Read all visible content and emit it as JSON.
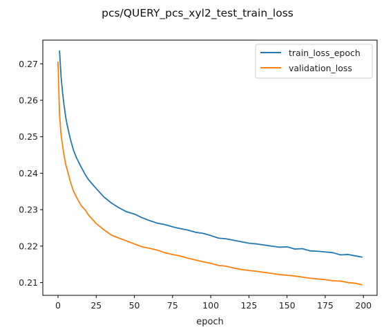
{
  "chart_data": {
    "type": "line",
    "title": "pcs/QUERY_pcs_xyl2_test_train_loss",
    "xlabel": "epoch",
    "ylabel": "",
    "xlim": [
      -9.95,
      208.95
    ],
    "ylim": [
      0.2065,
      0.2765
    ],
    "x_ticks": [
      0,
      25,
      50,
      75,
      100,
      125,
      150,
      175,
      200
    ],
    "y_ticks": [
      0.21,
      0.22,
      0.23,
      0.24,
      0.25,
      0.26,
      0.27
    ],
    "x_tick_labels": [
      "0",
      "25",
      "50",
      "75",
      "100",
      "125",
      "150",
      "175",
      "200"
    ],
    "y_tick_labels": [
      "0.21",
      "0.22",
      "0.23",
      "0.24",
      "0.25",
      "0.26",
      "0.27"
    ],
    "grid": false,
    "legend_position": "top-right",
    "series": [
      {
        "name": "train_loss_epoch",
        "color": "#1f77b4",
        "x": [
          1,
          2,
          3,
          4,
          5,
          6,
          8,
          10,
          12,
          15,
          18,
          20,
          25,
          30,
          35,
          40,
          45,
          50,
          55,
          60,
          65,
          70,
          75,
          80,
          85,
          90,
          95,
          100,
          105,
          110,
          115,
          120,
          125,
          130,
          135,
          140,
          145,
          150,
          155,
          160,
          165,
          170,
          175,
          180,
          185,
          190,
          195,
          199
        ],
        "y": [
          0.2735,
          0.2665,
          0.262,
          0.2585,
          0.2555,
          0.2532,
          0.2495,
          0.2465,
          0.2443,
          0.2418,
          0.2395,
          0.2382,
          0.2358,
          0.2335,
          0.2318,
          0.2305,
          0.2294,
          0.2288,
          0.2278,
          0.227,
          0.2263,
          0.2259,
          0.2253,
          0.2248,
          0.2244,
          0.2238,
          0.2235,
          0.2229,
          0.2222,
          0.222,
          0.2216,
          0.2212,
          0.2208,
          0.2206,
          0.2203,
          0.22,
          0.2197,
          0.2198,
          0.2192,
          0.2193,
          0.2187,
          0.2186,
          0.2184,
          0.2182,
          0.2176,
          0.2177,
          0.2173,
          0.217
        ]
      },
      {
        "name": "validation_loss",
        "color": "#ff7f0e",
        "x": [
          0,
          1,
          2,
          3,
          4,
          5,
          6,
          8,
          10,
          12,
          15,
          18,
          20,
          25,
          30,
          35,
          40,
          45,
          50,
          55,
          60,
          65,
          70,
          75,
          80,
          85,
          90,
          95,
          100,
          105,
          110,
          115,
          120,
          125,
          130,
          135,
          140,
          145,
          150,
          155,
          160,
          165,
          170,
          175,
          180,
          185,
          190,
          195,
          199
        ],
        "y": [
          0.2705,
          0.256,
          0.2505,
          0.2475,
          0.2448,
          0.2425,
          0.241,
          0.2378,
          0.2352,
          0.2335,
          0.2312,
          0.2298,
          0.2285,
          0.2262,
          0.2245,
          0.223,
          0.2222,
          0.2214,
          0.2206,
          0.2198,
          0.2194,
          0.2189,
          0.2182,
          0.2177,
          0.2173,
          0.2167,
          0.2162,
          0.2157,
          0.2153,
          0.2147,
          0.2145,
          0.214,
          0.2136,
          0.2133,
          0.2131,
          0.2128,
          0.2125,
          0.2122,
          0.212,
          0.2118,
          0.2115,
          0.2112,
          0.211,
          0.2108,
          0.2105,
          0.2104,
          0.21,
          0.2098,
          0.2094
        ]
      }
    ]
  }
}
